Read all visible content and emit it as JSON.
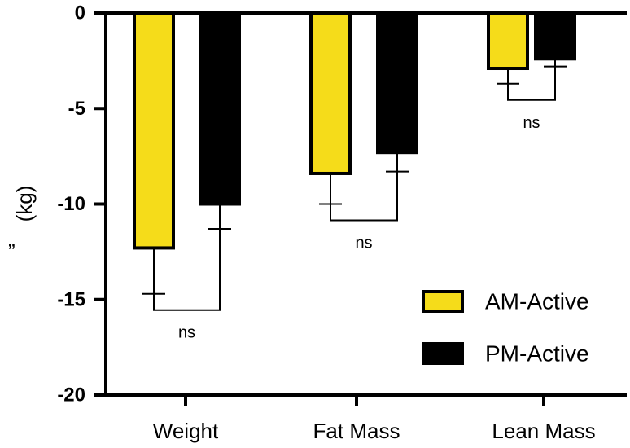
{
  "chart_data": {
    "type": "bar",
    "title": "",
    "xlabel": "",
    "ylabel": "(kg)",
    "ylabel_prefix": "”",
    "ylim": [
      -20,
      0
    ],
    "yticks": [
      0,
      -5,
      -10,
      -15,
      -20
    ],
    "ytick_labels": [
      "0",
      "-5",
      "-10",
      "-15",
      "-20"
    ],
    "categories": [
      "Weight",
      "Fat Mass",
      "Lean Mass"
    ],
    "series": [
      {
        "name": "AM-Active",
        "color": "#f5dc1a",
        "values": [
          -12.3,
          -8.4,
          -2.9
        ],
        "errors": [
          2.4,
          1.6,
          0.8
        ]
      },
      {
        "name": "PM-Active",
        "color": "#000000",
        "values": [
          -10.0,
          -7.3,
          -2.4
        ],
        "errors": [
          1.3,
          1.0,
          0.4
        ]
      }
    ],
    "annotations": [
      "ns",
      "ns",
      "ns"
    ],
    "legend_position": "bottom-right"
  }
}
